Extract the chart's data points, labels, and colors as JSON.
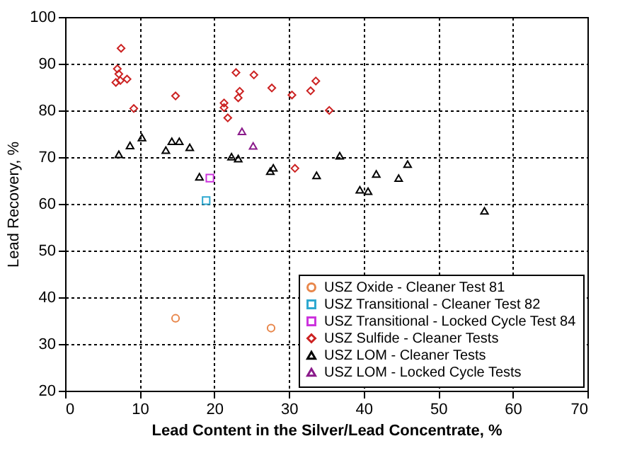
{
  "chart_data": {
    "type": "scatter",
    "xlabel": "Lead Content in the Silver/Lead Concentrate, %",
    "ylabel": "Lead Recovery, %",
    "xlim": [
      0,
      70
    ],
    "xticks": [
      0,
      10,
      20,
      30,
      40,
      50,
      60,
      70
    ],
    "ylim": [
      20,
      100
    ],
    "yticks": [
      20,
      30,
      40,
      50,
      60,
      70,
      80,
      90,
      100
    ],
    "grid": true,
    "legend": "bottom right",
    "series": [
      {
        "name": "USZ Oxide - Cleaner Test 81",
        "color": "#e8864a",
        "marker": "circle",
        "x": [
          14.8,
          27.6
        ],
        "values": [
          35.5,
          33.4
        ]
      },
      {
        "name": "USZ Transitional - Cleaner Test 82",
        "color": "#2ea8d0",
        "marker": "square",
        "x": [
          18.9
        ],
        "values": [
          60.7
        ]
      },
      {
        "name": "USZ Transitional - Locked Cycle Test 84",
        "color": "#cc33dd",
        "marker": "square",
        "x": [
          19.4
        ],
        "values": [
          65.5
        ]
      },
      {
        "name": "USZ Sulfide - Cleaner Tests",
        "color": "#cc2222",
        "marker": "diamond",
        "x": [
          7.5,
          7.0,
          7.2,
          6.8,
          7.4,
          8.3,
          9.2,
          14.8,
          22.9,
          25.3,
          23.4,
          23.2,
          21.3,
          21.3,
          21.8,
          27.7,
          30.4,
          32.9,
          33.6,
          35.4,
          30.8
        ],
        "values": [
          93.3,
          88.9,
          87.8,
          86.0,
          86.4,
          86.7,
          80.4,
          83.1,
          88.1,
          87.6,
          84.1,
          82.7,
          81.6,
          80.6,
          78.4,
          84.8,
          83.3,
          84.2,
          86.3,
          80.0,
          67.6
        ]
      },
      {
        "name": "USZ LOM - Cleaner Tests",
        "color": "#000000",
        "marker": "triangle",
        "x": [
          7.2,
          8.7,
          10.3,
          13.5,
          14.3,
          15.3,
          16.7,
          18.0,
          22.3,
          23.2,
          27.5,
          27.9,
          33.7,
          36.8,
          41.7,
          44.7,
          45.9,
          39.5,
          40.6,
          56.2
        ],
        "values": [
          70.6,
          72.5,
          74.2,
          71.5,
          73.4,
          73.4,
          72.1,
          65.8,
          70.1,
          69.7,
          67.0,
          67.7,
          66.1,
          70.3,
          66.4,
          65.5,
          68.5,
          63.0,
          62.7,
          58.5
        ]
      },
      {
        "name": "USZ LOM - Locked Cycle Tests",
        "color": "#8a1a8a",
        "marker": "triangle",
        "x": [
          23.7,
          25.2
        ],
        "values": [
          75.5,
          72.4
        ]
      }
    ]
  }
}
